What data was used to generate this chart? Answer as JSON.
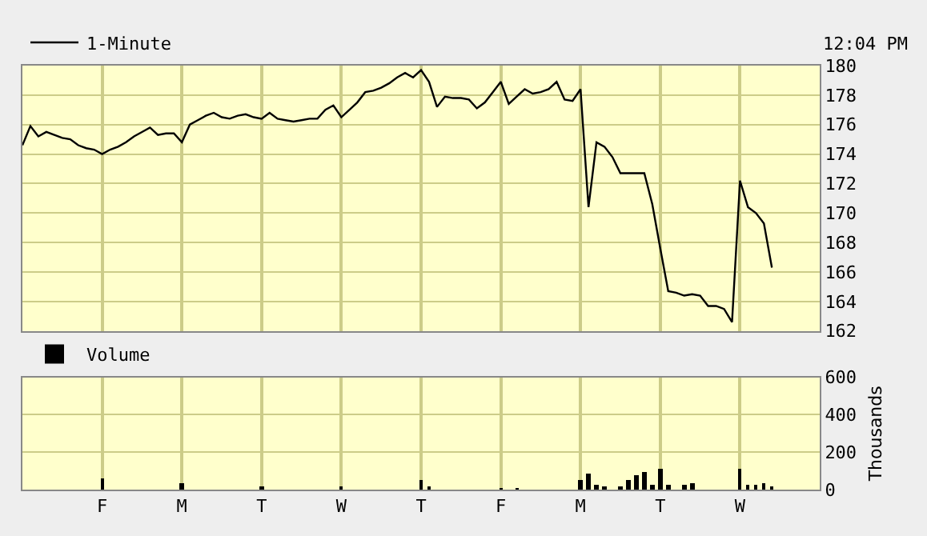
{
  "chart_data": [
    {
      "type": "line",
      "annotations": [
        "12:04 PM"
      ],
      "legend": "top left",
      "grid": true,
      "tick_labels": "y",
      "ylim": [
        162,
        180
      ],
      "yticks": [
        162,
        164,
        166,
        168,
        170,
        172,
        174,
        176,
        178,
        180
      ],
      "categories": [
        null,
        null,
        null,
        null,
        null,
        null,
        null,
        null,
        null,
        null,
        null,
        null,
        null,
        null,
        null,
        null,
        null,
        null,
        null,
        null,
        null,
        null,
        null,
        null,
        null,
        null,
        null,
        null,
        null,
        null,
        null,
        null,
        null,
        null,
        null,
        null,
        null,
        null,
        null,
        null,
        null,
        null,
        null,
        null,
        null,
        null,
        null,
        null,
        null,
        null,
        null,
        null,
        null,
        null,
        null,
        null,
        null,
        null,
        null,
        null,
        null,
        null,
        null,
        null,
        null,
        null,
        null,
        null,
        null,
        null,
        null,
        null,
        null,
        null,
        null,
        null,
        null,
        null,
        null,
        null,
        null,
        null,
        null,
        null,
        null,
        null,
        null,
        null,
        null,
        null,
        null,
        null,
        null,
        null,
        null,
        null,
        null,
        null,
        null,
        null,
        null
      ],
      "series": [
        {
          "name": "1-Minute",
          "color": "#000000",
          "values": [
            174.6,
            175.9,
            175.2,
            175.5,
            175.3,
            175.1,
            175.0,
            174.6,
            174.4,
            174.3,
            174.0,
            174.3,
            174.5,
            174.8,
            175.2,
            175.5,
            175.8,
            175.3,
            175.4,
            175.4,
            174.8,
            176.0,
            176.3,
            176.6,
            176.8,
            176.5,
            176.4,
            176.6,
            176.7,
            176.5,
            176.4,
            176.8,
            176.4,
            176.3,
            176.2,
            176.3,
            176.4,
            176.4,
            177.0,
            177.3,
            176.5,
            177.0,
            177.5,
            178.2,
            178.3,
            178.5,
            178.8,
            179.2,
            179.5,
            179.2,
            179.7,
            178.9,
            177.2,
            177.9,
            177.8,
            177.8,
            177.7,
            177.1,
            177.5,
            178.2,
            178.9,
            177.4,
            177.9,
            178.4,
            178.1,
            178.2,
            178.4,
            178.9,
            177.7,
            177.6,
            178.4,
            170.4,
            174.8,
            174.5,
            173.8,
            172.7,
            172.7,
            172.7,
            172.7,
            170.6,
            167.6,
            164.7,
            164.6,
            164.4,
            164.5,
            164.4,
            163.7,
            163.7,
            163.5,
            162.6,
            172.2,
            170.4,
            170.0,
            169.3,
            166.3,
            null,
            null,
            null,
            null,
            null,
            null
          ]
        }
      ]
    },
    {
      "type": "bar",
      "ylabel": "Thousands",
      "legend": "top left",
      "grid": true,
      "ylim": [
        0,
        600
      ],
      "yticks": [
        0,
        200,
        400,
        600
      ],
      "categories": [
        null,
        null,
        null,
        null,
        null,
        null,
        null,
        null,
        null,
        null,
        "F",
        null,
        null,
        null,
        null,
        null,
        null,
        null,
        null,
        null,
        "M",
        null,
        null,
        null,
        null,
        null,
        null,
        null,
        null,
        null,
        "T",
        null,
        null,
        null,
        null,
        null,
        null,
        null,
        null,
        null,
        "W",
        null,
        null,
        null,
        null,
        null,
        null,
        null,
        null,
        null,
        "T",
        null,
        null,
        null,
        null,
        null,
        null,
        null,
        null,
        null,
        "F",
        null,
        null,
        null,
        null,
        null,
        null,
        null,
        null,
        null,
        "M",
        null,
        null,
        null,
        null,
        null,
        null,
        null,
        null,
        null,
        "T",
        null,
        null,
        null,
        null,
        null,
        null,
        null,
        null,
        null,
        "W",
        null,
        null,
        null,
        null,
        null,
        null,
        null,
        null,
        null,
        null
      ],
      "series": [
        {
          "name": "Volume",
          "color": "#000000",
          "values": [
            0,
            0,
            0,
            0,
            0,
            0,
            0,
            0,
            0,
            0,
            60,
            0,
            0,
            0,
            0,
            0,
            0,
            0,
            0,
            0,
            40,
            0,
            0,
            0,
            0,
            0,
            0,
            0,
            0,
            0,
            20,
            0,
            0,
            0,
            0,
            0,
            0,
            0,
            0,
            0,
            20,
            0,
            0,
            0,
            0,
            0,
            0,
            0,
            0,
            0,
            50,
            20,
            0,
            0,
            0,
            0,
            0,
            0,
            0,
            0,
            10,
            0,
            10,
            0,
            0,
            0,
            0,
            0,
            0,
            0,
            50,
            90,
            30,
            20,
            0,
            20,
            50,
            80,
            100,
            30,
            110,
            30,
            0,
            30,
            40,
            0,
            0,
            0,
            0,
            0,
            110,
            30,
            30,
            40,
            20,
            0,
            0,
            0,
            0,
            0,
            0
          ]
        }
      ]
    }
  ]
}
